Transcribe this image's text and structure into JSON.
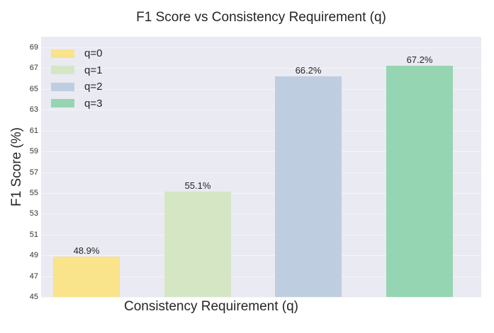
{
  "chart_data": {
    "type": "bar",
    "title": "F1 Score vs Consistency Requirement (q)",
    "xlabel": "Consistency Requirement (q)",
    "ylabel": "F1 Score (%)",
    "categories": [
      "q=0",
      "q=1",
      "q=2",
      "q=3"
    ],
    "values": [
      48.9,
      55.1,
      66.2,
      67.2
    ],
    "value_labels": [
      "48.9%",
      "55.1%",
      "66.2%",
      "67.2%"
    ],
    "colors": [
      "#f9e38b",
      "#d5e6c5",
      "#bfcde0",
      "#96d5b2"
    ],
    "ylim": [
      45,
      70
    ],
    "yticks": [
      45,
      47,
      49,
      51,
      53,
      55,
      57,
      59,
      61,
      63,
      65,
      67,
      69
    ],
    "grid": true,
    "legend_position": "upper left",
    "legend": [
      "q=0",
      "q=1",
      "q=2",
      "q=3"
    ]
  }
}
